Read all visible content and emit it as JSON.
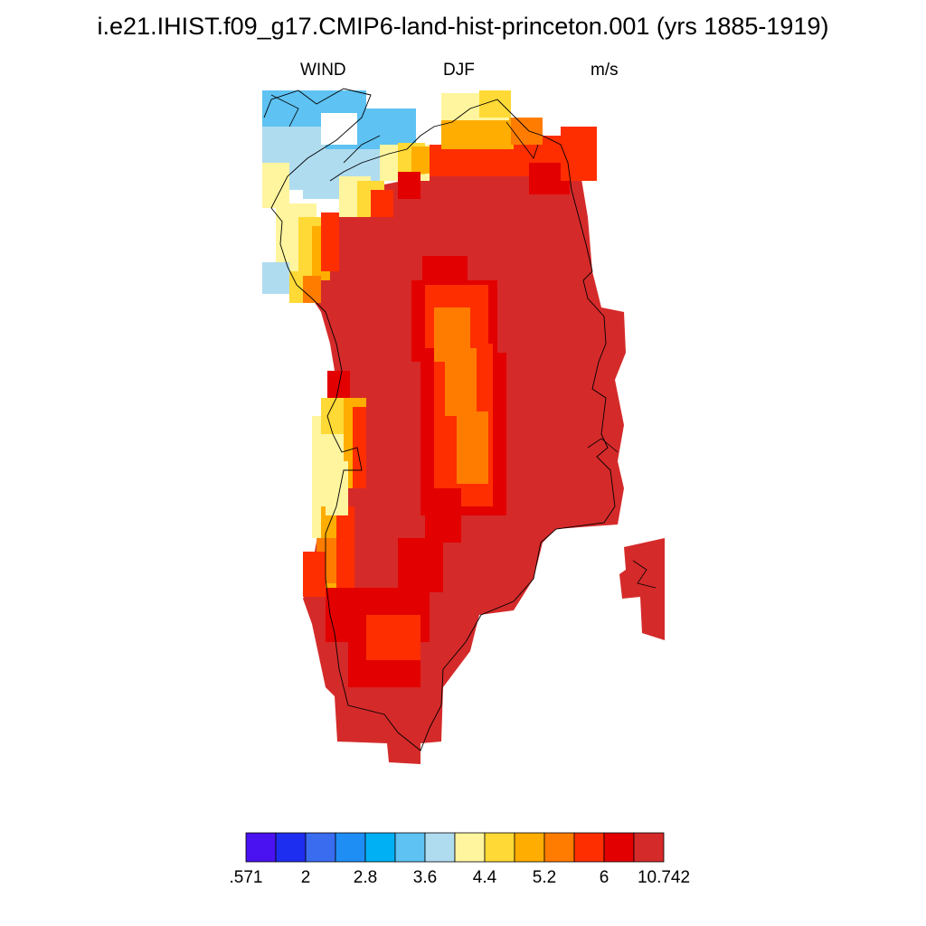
{
  "title": "i.e21.IHIST.f09_g17.CMIP6-land-hist-princeton.001 (yrs 1885-1919)",
  "subtitle": {
    "variable": "WIND",
    "season": "DJF",
    "units": "m/s"
  },
  "colorbar": {
    "colors": [
      "#4a12f0",
      "#1e2ef0",
      "#3a6cf0",
      "#1e8ef5",
      "#00b0f5",
      "#5ec2f2",
      "#b0dcf0",
      "#fff59e",
      "#ffd935",
      "#ffad00",
      "#ff7c00",
      "#ff2e00",
      "#e30000",
      "#d52a2a"
    ],
    "labels": [
      ".571",
      "2",
      "2.8",
      "3.6",
      "4.4",
      "5.2",
      "6",
      "10.742"
    ]
  },
  "chart_data": {
    "type": "heatmap",
    "title": "i.e21.IHIST.f09_g17.CMIP6-land-hist-princeton.001 (yrs 1885-1919)",
    "variable": "WIND",
    "season": "DJF",
    "units": "m/s",
    "levels": [
      0.571,
      2,
      2.8,
      3.6,
      4.4,
      5.2,
      6,
      10.742
    ],
    "region": "Greenland",
    "pattern": "Interior mostly in highest bin (6 to 10.742 m/s); lower central band near 5.2-6 m/s; northwest coast 3.6-5.2 m/s; eastern margin in highest bin"
  }
}
